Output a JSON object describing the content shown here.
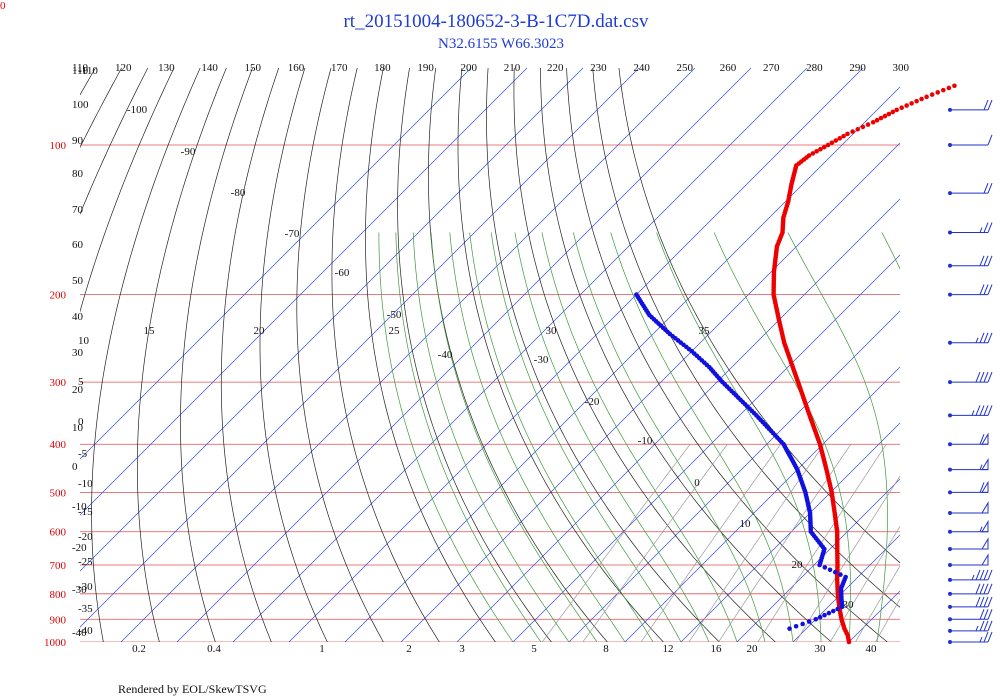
{
  "chart": {
    "title": "rt_20151004-180652-3-B-1C7D.dat.csv",
    "subtitle": "N32.6155 W66.3023",
    "credit": "Rendered by EOL/SkewTSVG",
    "corner_label": "0"
  },
  "colors": {
    "background": "#ffffff",
    "isobar": "#e05050",
    "isotherm": "#3a4fd8",
    "dry_adiabat": "#222222",
    "moist_adiabat": "#3c9a3c",
    "mixing_ratio": "#9a9a9a",
    "temperature": "#ee0000",
    "dewpoint": "#1010e0",
    "wind_barb": "#2233cc",
    "title": "#1f3bd6"
  },
  "chart_data": {
    "type": "skew-t log-p",
    "pressure_axis": {
      "label_values": [
        100,
        200,
        300,
        400,
        500,
        600,
        700,
        800,
        900,
        1000
      ],
      "range_hPa": [
        1000,
        70
      ]
    },
    "top_scale": {
      "values": [
        110,
        120,
        130,
        140,
        150,
        160,
        170,
        180,
        190,
        200,
        210,
        220,
        230,
        240,
        250,
        260,
        270,
        280,
        290,
        300
      ]
    },
    "left_scale": {
      "values": [
        110,
        100,
        90,
        80,
        70,
        60,
        50,
        40,
        30,
        20,
        10,
        0,
        -10,
        -20,
        -30,
        -40
      ]
    },
    "isotherm_labels": [
      {
        "text": "-110",
        "t": -110
      },
      {
        "text": "-100",
        "t": -100
      },
      {
        "text": "-90",
        "t": -90
      },
      {
        "text": "-80",
        "t": -80
      },
      {
        "text": "-70",
        "t": -70
      },
      {
        "text": "-60",
        "t": -60
      },
      {
        "text": "-50",
        "t": -50
      },
      {
        "text": "-40",
        "t": -40
      },
      {
        "text": "-30",
        "t": -30
      },
      {
        "text": "-20",
        "t": -20
      },
      {
        "text": "-10",
        "t": -10
      },
      {
        "text": "0",
        "t": 0
      },
      {
        "text": "10",
        "t": 10
      },
      {
        "text": "20",
        "t": 20
      },
      {
        "text": "30",
        "t": 30
      }
    ],
    "moist_labels_top": [
      "15",
      "20",
      "25",
      "30",
      "35"
    ],
    "moist_labels_left": [
      "10",
      "5",
      "0",
      "-5",
      "-10",
      "-15",
      "-20",
      "-25",
      "-30",
      "-35",
      "-40"
    ],
    "mixing_ratio_labels": [
      "0.2",
      "0.4",
      "1",
      "2",
      "3",
      "5",
      "8",
      "12",
      "16",
      "20",
      "30",
      "40"
    ],
    "temperature_profile": [
      {
        "p": 1000,
        "t": 20
      },
      {
        "p": 970,
        "t": 18.6
      },
      {
        "p": 940,
        "t": 16.8
      },
      {
        "p": 900,
        "t": 14.6
      },
      {
        "p": 850,
        "t": 12.0
      },
      {
        "p": 800,
        "t": 9.4
      },
      {
        "p": 750,
        "t": 6.8
      },
      {
        "p": 700,
        "t": 4.2
      },
      {
        "p": 650,
        "t": 1.3
      },
      {
        "p": 600,
        "t": -1.8
      },
      {
        "p": 550,
        "t": -5.6
      },
      {
        "p": 500,
        "t": -9.8
      },
      {
        "p": 450,
        "t": -14.8
      },
      {
        "p": 400,
        "t": -20.5
      },
      {
        "p": 350,
        "t": -27.5
      },
      {
        "p": 300,
        "t": -35.5
      },
      {
        "p": 250,
        "t": -45.0
      },
      {
        "p": 225,
        "t": -50.0
      },
      {
        "p": 200,
        "t": -55.5
      },
      {
        "p": 180,
        "t": -59.5
      },
      {
        "p": 160,
        "t": -63.5
      },
      {
        "p": 150,
        "t": -65.0
      },
      {
        "p": 140,
        "t": -67.5
      },
      {
        "p": 130,
        "t": -69.5
      },
      {
        "p": 120,
        "t": -72.0
      },
      {
        "p": 110,
        "t": -74.5
      },
      {
        "p": 105,
        "t": -74.0
      },
      {
        "p": 100,
        "t": -72.5
      },
      {
        "p": 95,
        "t": -71.0
      },
      {
        "p": 90,
        "t": -68.5
      },
      {
        "p": 85,
        "t": -66.5
      },
      {
        "p": 80,
        "t": -63.5
      },
      {
        "p": 76,
        "t": -60.5
      }
    ],
    "dewpoint_profile": [
      {
        "p": 940,
        "t": 7.0
      },
      {
        "p": 900,
        "t": 10.0
      },
      {
        "p": 850,
        "t": 12.5
      },
      {
        "p": 820,
        "t": 11.0
      },
      {
        "p": 780,
        "t": 9.0
      },
      {
        "p": 740,
        "t": 7.8
      },
      {
        "p": 700,
        "t": 1.0
      },
      {
        "p": 650,
        "t": -1.0
      },
      {
        "p": 600,
        "t": -6.5
      },
      {
        "p": 550,
        "t": -10.0
      },
      {
        "p": 500,
        "t": -14.5
      },
      {
        "p": 450,
        "t": -20.0
      },
      {
        "p": 400,
        "t": -27.0
      },
      {
        "p": 350,
        "t": -37.0
      },
      {
        "p": 300,
        "t": -49.0
      },
      {
        "p": 280,
        "t": -54.0
      },
      {
        "p": 260,
        "t": -60.0
      },
      {
        "p": 240,
        "t": -67.0
      },
      {
        "p": 220,
        "t": -74.0
      },
      {
        "p": 200,
        "t": -80.0
      }
    ],
    "wind_barbs": [
      {
        "p": 1000,
        "kt": 25
      },
      {
        "p": 950,
        "kt": 35
      },
      {
        "p": 900,
        "kt": 30
      },
      {
        "p": 850,
        "kt": 40
      },
      {
        "p": 800,
        "kt": 40
      },
      {
        "p": 750,
        "kt": 45
      },
      {
        "p": 700,
        "kt": 50
      },
      {
        "p": 650,
        "kt": 50
      },
      {
        "p": 600,
        "kt": 55
      },
      {
        "p": 550,
        "kt": 50
      },
      {
        "p": 500,
        "kt": 60
      },
      {
        "p": 450,
        "kt": 55
      },
      {
        "p": 400,
        "kt": 60
      },
      {
        "p": 350,
        "kt": 45
      },
      {
        "p": 300,
        "kt": 40
      },
      {
        "p": 250,
        "kt": 35
      },
      {
        "p": 200,
        "kt": 30
      },
      {
        "p": 175,
        "kt": 30
      },
      {
        "p": 150,
        "kt": 25
      },
      {
        "p": 125,
        "kt": 20
      },
      {
        "p": 100,
        "kt": 10
      },
      {
        "p": 85,
        "kt": 20
      }
    ],
    "grid": true
  }
}
